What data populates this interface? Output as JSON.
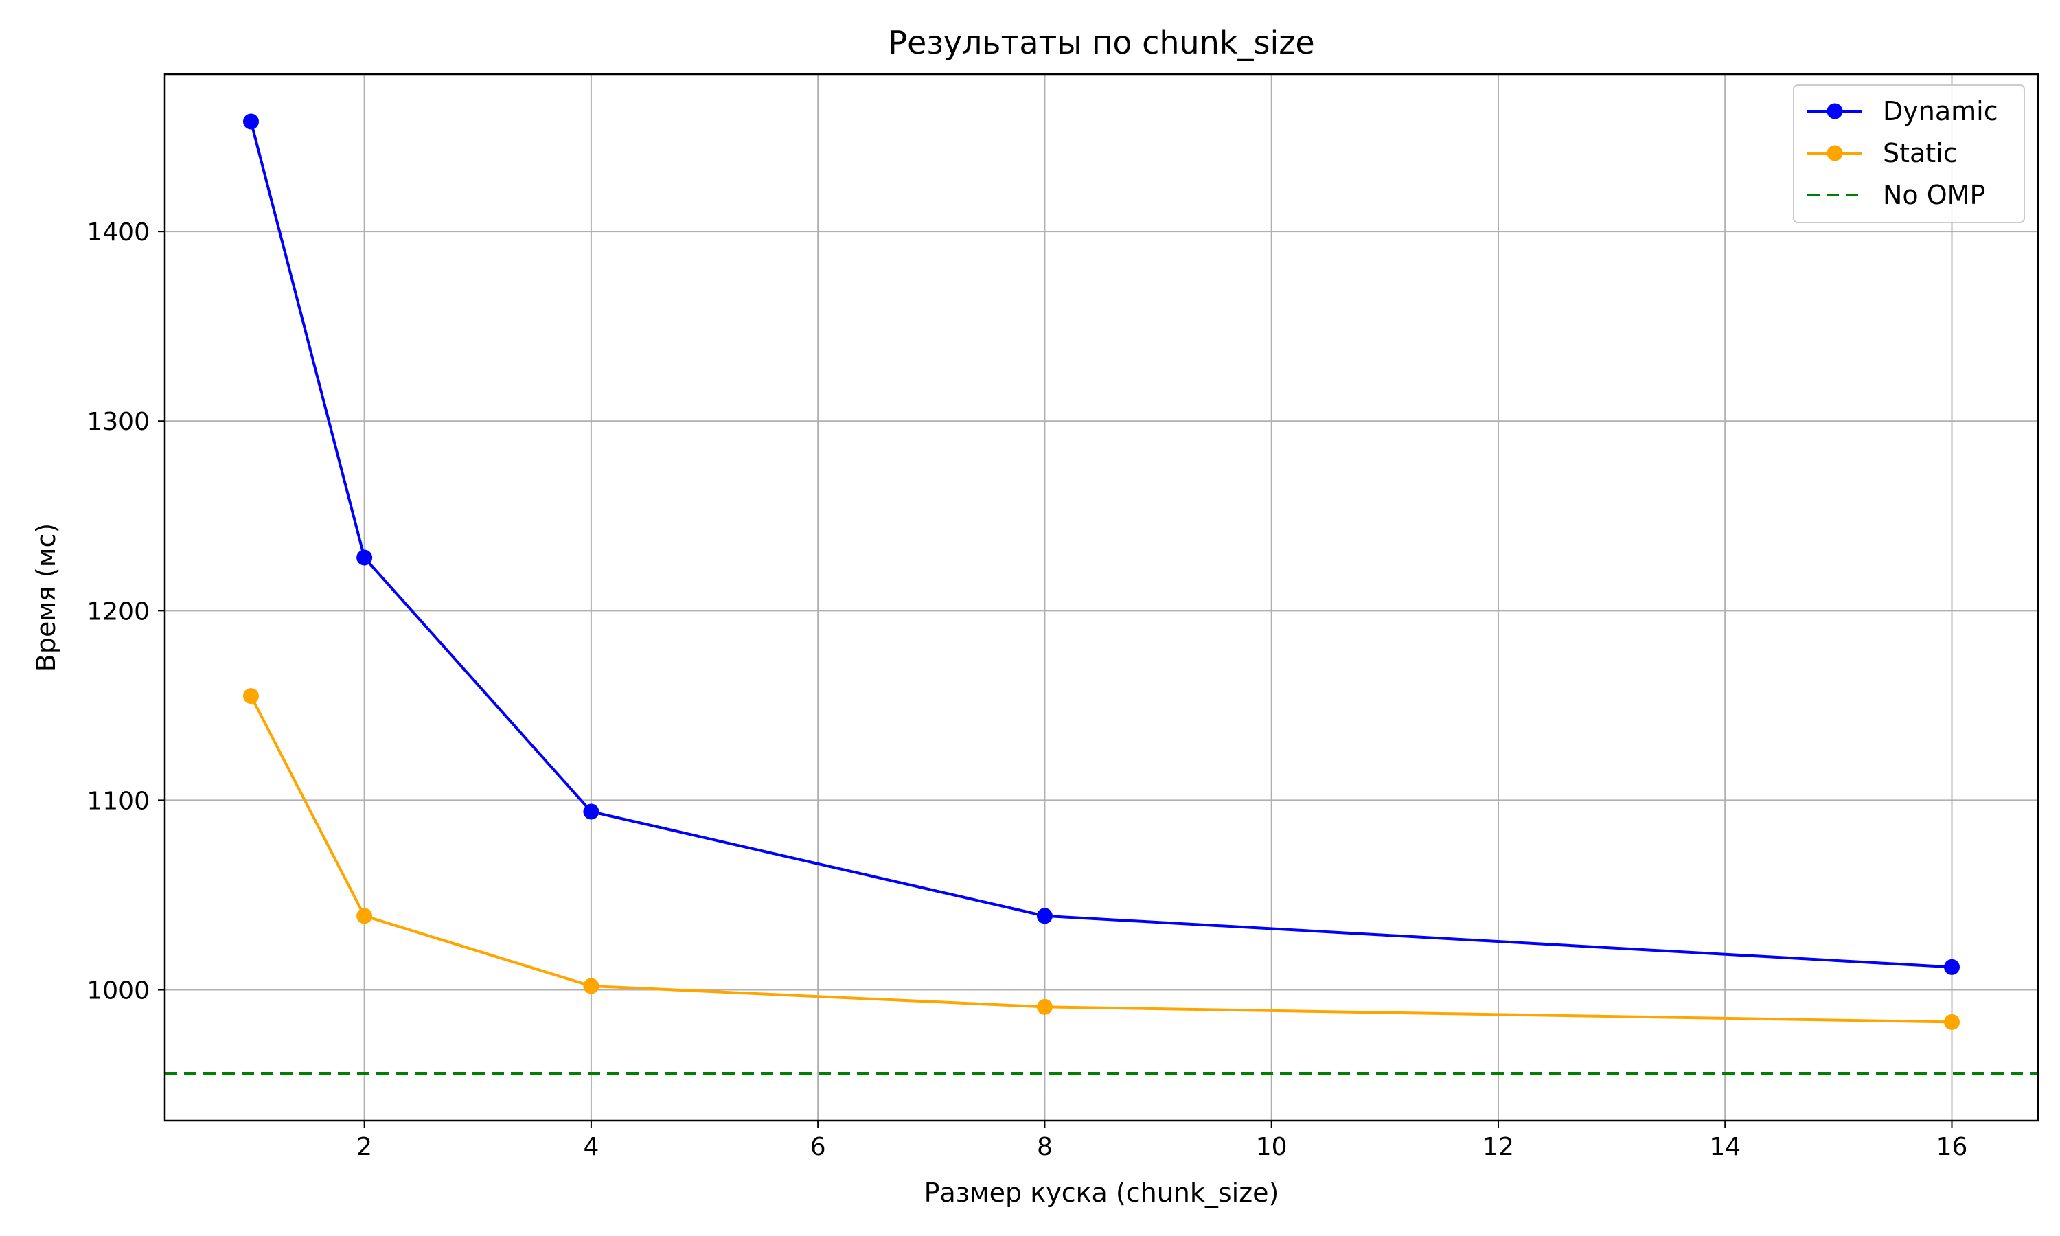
{
  "chart_data": {
    "type": "line",
    "title": "Результаты по chunk_size",
    "xlabel": "Размер куска (chunk_size)",
    "ylabel": "Время (мс)",
    "xlim": [
      0.24,
      16.76
    ],
    "ylim": [
      931,
      1483
    ],
    "xticks": [
      2,
      4,
      6,
      8,
      10,
      12,
      14,
      16
    ],
    "yticks": [
      1000,
      1100,
      1200,
      1300,
      1400
    ],
    "grid": true,
    "legend_position": "top-right",
    "series": [
      {
        "name": "Dynamic",
        "color": "#0000ff",
        "style": "solid",
        "marker": "circle",
        "x": [
          1,
          2,
          4,
          8,
          16
        ],
        "y": [
          1458,
          1228,
          1094,
          1039,
          1012
        ]
      },
      {
        "name": "Static",
        "color": "#ffa500",
        "style": "solid",
        "marker": "circle",
        "x": [
          1,
          2,
          4,
          8,
          16
        ],
        "y": [
          1155,
          1039,
          1002,
          991,
          983
        ]
      },
      {
        "name": "No OMP",
        "color": "#008000",
        "style": "dashed",
        "marker": "none",
        "hline": 956
      }
    ]
  }
}
